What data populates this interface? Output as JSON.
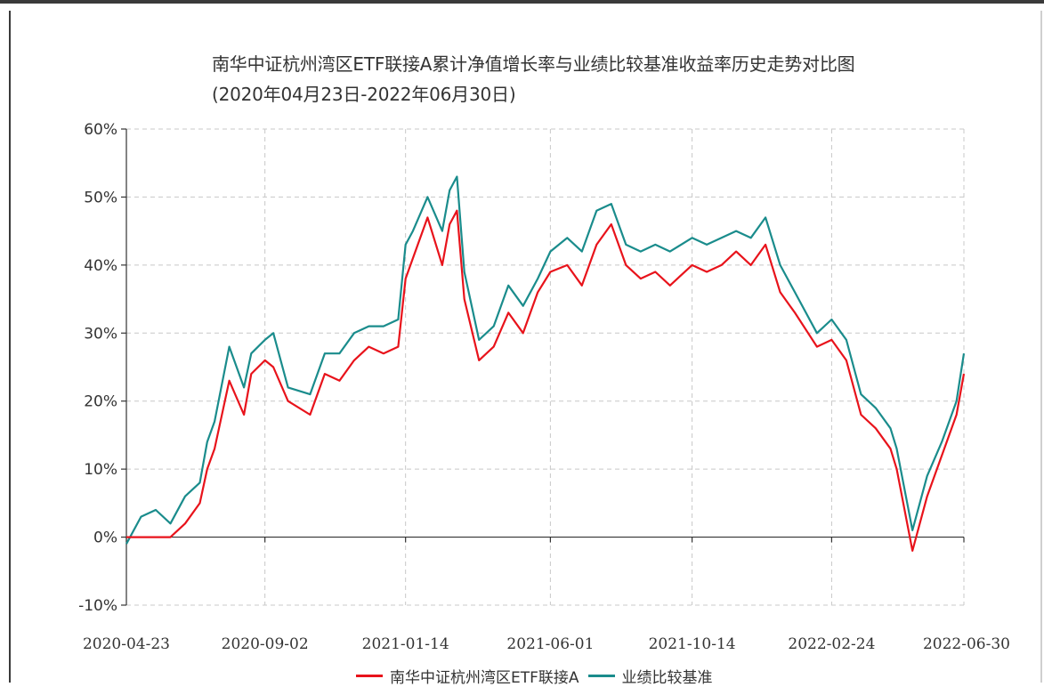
{
  "chart_data": {
    "type": "line",
    "title": "南华中证杭州湾区ETF联接A累计净值增长率与业绩比较基准收益率历史走势对比图",
    "subtitle": "(2020年04月23日-2022年06月30日)",
    "xlabel": "",
    "ylabel": "",
    "ylim": [
      -10,
      60
    ],
    "y_ticks": [
      "60%",
      "50%",
      "40%",
      "30%",
      "20%",
      "10%",
      "0%",
      "-10%"
    ],
    "y_tick_values": [
      60,
      50,
      40,
      30,
      20,
      10,
      0,
      -10
    ],
    "x_ticks": [
      "2020-04-23",
      "2020-09-02",
      "2021-01-14",
      "2021-06-01",
      "2021-10-14",
      "2022-02-24",
      "2022-06-30"
    ],
    "grid": true,
    "legend_position": "bottom",
    "x": [
      "2020-04-23",
      "2020-05-07",
      "2020-05-21",
      "2020-06-04",
      "2020-06-18",
      "2020-07-02",
      "2020-07-09",
      "2020-07-16",
      "2020-07-30",
      "2020-08-13",
      "2020-08-20",
      "2020-09-02",
      "2020-09-10",
      "2020-09-24",
      "2020-10-15",
      "2020-10-29",
      "2020-11-12",
      "2020-11-26",
      "2020-12-10",
      "2020-12-24",
      "2021-01-07",
      "2021-01-14",
      "2021-01-21",
      "2021-02-04",
      "2021-02-18",
      "2021-02-25",
      "2021-03-04",
      "2021-03-11",
      "2021-03-25",
      "2021-04-08",
      "2021-04-22",
      "2021-05-06",
      "2021-05-20",
      "2021-06-01",
      "2021-06-17",
      "2021-07-01",
      "2021-07-15",
      "2021-07-29",
      "2021-08-12",
      "2021-08-26",
      "2021-09-09",
      "2021-09-23",
      "2021-10-14",
      "2021-10-28",
      "2021-11-11",
      "2021-11-25",
      "2021-12-09",
      "2021-12-23",
      "2022-01-06",
      "2022-01-20",
      "2022-02-10",
      "2022-02-24",
      "2022-03-10",
      "2022-03-24",
      "2022-04-07",
      "2022-04-21",
      "2022-04-27",
      "2022-05-12",
      "2022-05-26",
      "2022-06-09",
      "2022-06-23",
      "2022-06-30"
    ],
    "series": [
      {
        "name": "南华中证杭州湾区ETF联接A",
        "color": "#e8131b",
        "values": [
          0,
          0,
          0,
          0,
          2,
          5,
          10,
          13,
          23,
          18,
          24,
          26,
          25,
          20,
          18,
          24,
          23,
          26,
          28,
          27,
          28,
          38,
          41,
          47,
          40,
          46,
          48,
          35,
          26,
          28,
          33,
          30,
          36,
          39,
          40,
          37,
          43,
          46,
          40,
          38,
          39,
          37,
          40,
          39,
          40,
          42,
          40,
          43,
          36,
          33,
          28,
          29,
          26,
          18,
          16,
          13,
          10,
          -2,
          6,
          12,
          18,
          24
        ]
      },
      {
        "name": "业绩比较基准",
        "color": "#1a8c8c",
        "values": [
          -1,
          3,
          4,
          2,
          6,
          8,
          14,
          17,
          28,
          22,
          27,
          29,
          30,
          22,
          21,
          27,
          27,
          30,
          31,
          31,
          32,
          43,
          45,
          50,
          45,
          51,
          53,
          39,
          29,
          31,
          37,
          34,
          38,
          42,
          44,
          42,
          48,
          49,
          43,
          42,
          43,
          42,
          44,
          43,
          44,
          45,
          44,
          47,
          40,
          36,
          30,
          32,
          29,
          21,
          19,
          16,
          13,
          1,
          9,
          14,
          20,
          27
        ]
      }
    ]
  }
}
